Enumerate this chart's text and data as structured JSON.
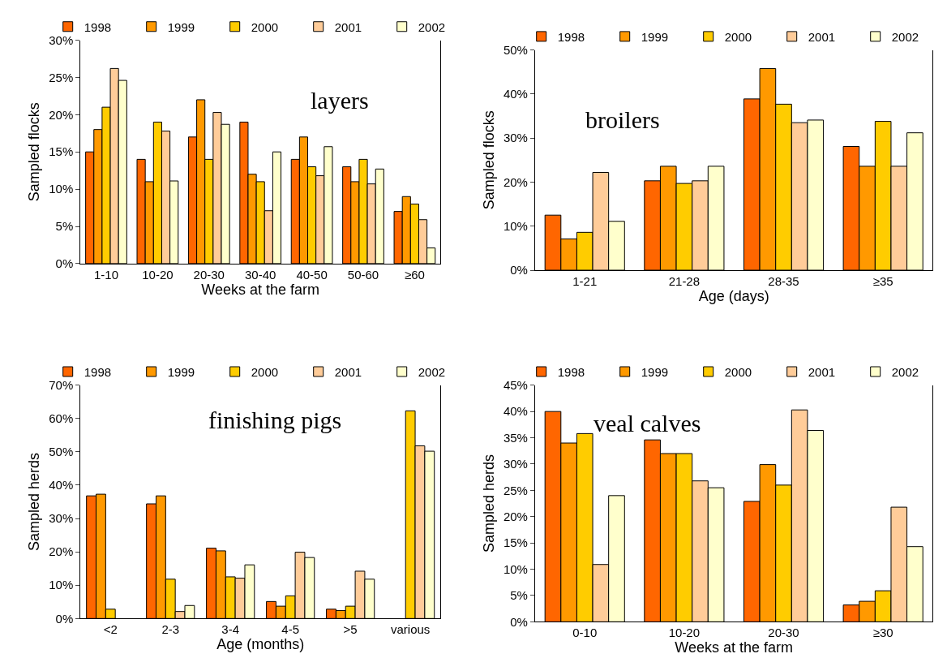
{
  "chart_data": [
    {
      "type": "bar",
      "annotations": [
        "layers"
      ],
      "xlabel": "Weeks at the farm",
      "ylabel": "Sampled flocks",
      "categories": [
        "1-10",
        "10-20",
        "20-30",
        "30-40",
        "40-50",
        "50-60",
        "≥60"
      ],
      "ylim": [
        0,
        30
      ],
      "yticks": [
        {
          "value": 0,
          "label": "0%"
        },
        {
          "value": 5,
          "label": "5%"
        },
        {
          "value": 10,
          "label": "10%"
        },
        {
          "value": 15,
          "label": "15%"
        },
        {
          "value": 20,
          "label": "20%"
        },
        {
          "value": 25,
          "label": "25%"
        },
        {
          "value": 30,
          "label": "30%"
        }
      ],
      "legend": "top",
      "grid": false,
      "series": [
        {
          "name": "1998",
          "color": "#ff6600",
          "values": [
            15,
            14,
            17,
            19,
            14,
            13,
            7
          ]
        },
        {
          "name": "1999",
          "color": "#ff9900",
          "values": [
            18,
            11,
            22,
            12,
            17,
            11,
            9
          ]
        },
        {
          "name": "2000",
          "color": "#ffcc00",
          "values": [
            21,
            19,
            14,
            11,
            13,
            14,
            8
          ]
        },
        {
          "name": "2001",
          "color": "#ffcc99",
          "values": [
            26.2,
            17.8,
            20.3,
            7.1,
            11.8,
            10.7,
            5.9
          ]
        },
        {
          "name": "2002",
          "color": "#ffffcc",
          "values": [
            24.6,
            11.1,
            18.7,
            15,
            15.7,
            12.7,
            2.1
          ]
        }
      ]
    },
    {
      "type": "bar",
      "annotations": [
        "broilers"
      ],
      "xlabel": "Age (days)",
      "ylabel": "Sampled flocks",
      "categories": [
        "1-21",
        "21-28",
        "28-35",
        "≥35"
      ],
      "ylim": [
        0,
        50
      ],
      "yticks": [
        {
          "value": 0,
          "label": "0%"
        },
        {
          "value": 10,
          "label": "10%"
        },
        {
          "value": 20,
          "label": "20%"
        },
        {
          "value": 30,
          "label": "30%"
        },
        {
          "value": 40,
          "label": "40%"
        },
        {
          "value": 50,
          "label": "50%"
        }
      ],
      "legend": "top",
      "grid": false,
      "series": [
        {
          "name": "1998",
          "color": "#ff6600",
          "values": [
            12.5,
            20.3,
            38.9,
            28.1
          ]
        },
        {
          "name": "1999",
          "color": "#ff9900",
          "values": [
            7.1,
            23.6,
            45.8,
            23.6
          ]
        },
        {
          "name": "2000",
          "color": "#ffcc00",
          "values": [
            8.6,
            19.7,
            37.7,
            33.8
          ]
        },
        {
          "name": "2001",
          "color": "#ffcc99",
          "values": [
            22.2,
            20.3,
            33.5,
            23.6
          ]
        },
        {
          "name": "2002",
          "color": "#ffffcc",
          "values": [
            11.1,
            23.6,
            34.1,
            31.2
          ]
        }
      ]
    },
    {
      "type": "bar",
      "annotations": [
        "finishing pigs"
      ],
      "xlabel": "Age (months)",
      "ylabel": "Sampled herds",
      "categories": [
        "<2",
        "2-3",
        "3-4",
        "4-5",
        ">5",
        "various"
      ],
      "ylim": [
        0,
        70
      ],
      "yticks": [
        {
          "value": 0,
          "label": "0%"
        },
        {
          "value": 10,
          "label": "10%"
        },
        {
          "value": 20,
          "label": "20%"
        },
        {
          "value": 30,
          "label": "30%"
        },
        {
          "value": 40,
          "label": "40%"
        },
        {
          "value": 50,
          "label": "50%"
        },
        {
          "value": 60,
          "label": "60%"
        },
        {
          "value": 70,
          "label": "70%"
        }
      ],
      "legend": "top",
      "grid": false,
      "series": [
        {
          "name": "1998",
          "color": "#ff6600",
          "values": [
            36.8,
            34.4,
            21.1,
            5.1,
            2.8,
            null
          ]
        },
        {
          "name": "1999",
          "color": "#ff9900",
          "values": [
            37.3,
            36.8,
            20.3,
            3.7,
            2.4,
            null
          ]
        },
        {
          "name": "2000",
          "color": "#ffcc00",
          "values": [
            2.8,
            11.8,
            12.5,
            6.8,
            3.7,
            62.3
          ]
        },
        {
          "name": "2001",
          "color": "#ffcc99",
          "values": [
            null,
            2.1,
            12.1,
            19.9,
            14.2,
            51.8
          ]
        },
        {
          "name": "2002",
          "color": "#ffffcc",
          "values": [
            null,
            3.9,
            16.1,
            18.3,
            11.8,
            50.2
          ]
        }
      ]
    },
    {
      "type": "bar",
      "annotations": [
        "veal calves"
      ],
      "xlabel": "Weeks at the farm",
      "ylabel": "Sampled herds",
      "categories": [
        "0-10",
        "10-20",
        "20-30",
        "≥30"
      ],
      "ylim": [
        0,
        45
      ],
      "yticks": [
        {
          "value": 0,
          "label": "0%"
        },
        {
          "value": 5,
          "label": "5%"
        },
        {
          "value": 10,
          "label": "10%"
        },
        {
          "value": 15,
          "label": "15%"
        },
        {
          "value": 20,
          "label": "20%"
        },
        {
          "value": 25,
          "label": "25%"
        },
        {
          "value": 30,
          "label": "30%"
        },
        {
          "value": 35,
          "label": "35%"
        },
        {
          "value": 40,
          "label": "40%"
        },
        {
          "value": 45,
          "label": "45%"
        }
      ],
      "legend": "top",
      "grid": false,
      "series": [
        {
          "name": "1998",
          "color": "#ff6600",
          "values": [
            40.0,
            34.6,
            22.9,
            3.2
          ]
        },
        {
          "name": "1999",
          "color": "#ff9900",
          "values": [
            34.0,
            32.0,
            29.9,
            3.9
          ]
        },
        {
          "name": "2000",
          "color": "#ffcc00",
          "values": [
            35.8,
            32.0,
            26.0,
            5.9
          ]
        },
        {
          "name": "2001",
          "color": "#ffcc99",
          "values": [
            10.9,
            26.8,
            40.3,
            21.8
          ]
        },
        {
          "name": "2002",
          "color": "#ffffcc",
          "values": [
            24.0,
            25.5,
            36.4,
            14.3
          ]
        }
      ]
    }
  ]
}
